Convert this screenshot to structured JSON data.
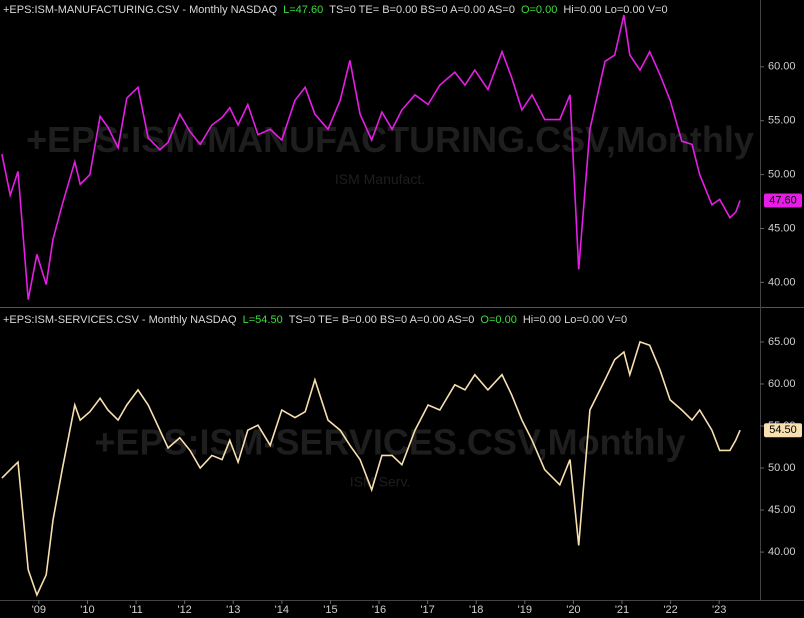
{
  "chart_data": [
    {
      "type": "line",
      "header": [
        {
          "text": "+EPS:ISM-MANUFACTURING.CSV - Monthly  NASDAQ",
          "color": "#d8d8d8"
        },
        {
          "text": "L=47.60",
          "color": "#3ddc3d"
        },
        {
          "text": "TS=0  TE=  B=0.00  BS=0  A=0.00  AS=0",
          "color": "#d8d8d8"
        },
        {
          "text": "O=0.00",
          "color": "#3ddc3d"
        },
        {
          "text": "Hi=0.00  Lo=0.00  V=0",
          "color": "#d8d8d8"
        }
      ],
      "watermark": "+EPS:ISM-MANUFACTURING.CSV,Monthly",
      "subtitle": "ISM Manufact.",
      "last_value_label": "47.60",
      "color": "#e51ee5",
      "x": [
        2008.24,
        2008.41,
        2008.57,
        2008.78,
        2008.96,
        2009.15,
        2009.29,
        2009.48,
        2009.74,
        2009.85,
        2010.05,
        2010.26,
        2010.42,
        2010.63,
        2010.81,
        2011.04,
        2011.25,
        2011.49,
        2011.66,
        2011.9,
        2012.11,
        2012.32,
        2012.56,
        2012.77,
        2012.93,
        2013.1,
        2013.3,
        2013.51,
        2013.76,
        2014.0,
        2014.27,
        2014.48,
        2014.68,
        2014.95,
        2015.2,
        2015.4,
        2015.61,
        2015.85,
        2016.06,
        2016.27,
        2016.47,
        2016.74,
        2017.01,
        2017.25,
        2017.56,
        2017.77,
        2017.97,
        2018.24,
        2018.53,
        2018.73,
        2018.94,
        2019.15,
        2019.41,
        2019.72,
        2019.93,
        2020.11,
        2020.34,
        2020.65,
        2020.85,
        2021.04,
        2021.16,
        2021.37,
        2021.57,
        2021.78,
        2021.99,
        2022.23,
        2022.44,
        2022.6,
        2022.85,
        2023.01,
        2023.22,
        2023.34,
        2023.43
      ],
      "values": [
        51.9,
        48.1,
        50.3,
        38.4,
        42.6,
        39.8,
        44,
        47.2,
        51.2,
        49.1,
        50,
        55.4,
        54.4,
        52.5,
        57.1,
        58.1,
        53.4,
        52.3,
        53,
        55.6,
        54,
        52.8,
        54.6,
        55.3,
        56.2,
        54.6,
        56.5,
        53.7,
        54.2,
        53.2,
        56.9,
        58.1,
        55.6,
        54.2,
        56.9,
        60.6,
        55.6,
        53.2,
        55.8,
        54.2,
        56,
        57.4,
        56.5,
        58.3,
        59.5,
        58.3,
        59.7,
        57.9,
        61.4,
        59,
        56,
        57.4,
        55.1,
        55.1,
        57.4,
        41.2,
        54.2,
        60.5,
        61.1,
        64.8,
        61.1,
        59.7,
        61.4,
        59.3,
        56.9,
        53.1,
        52.8,
        50,
        47.2,
        47.7,
        46,
        46.5,
        47.6
      ],
      "xlim": [
        2008.2,
        2023.84
      ],
      "ylim": [
        37.9,
        66.2
      ],
      "yticks": [
        {
          "value": 40,
          "label": "40.00"
        },
        {
          "value": 45,
          "label": "45.00"
        },
        {
          "value": 50,
          "label": "50.00"
        },
        {
          "value": 55,
          "label": "55.00"
        },
        {
          "value": 60,
          "label": "60.00"
        }
      ]
    },
    {
      "type": "line",
      "header": [
        {
          "text": "+EPS:ISM-SERVICES.CSV - Monthly  NASDAQ",
          "color": "#d8d8d8"
        },
        {
          "text": "L=54.50",
          "color": "#3ddc3d"
        },
        {
          "text": "TS=0  TE=  B=0.00  BS=0  A=0.00  AS=0",
          "color": "#d8d8d8"
        },
        {
          "text": "O=0.00",
          "color": "#3ddc3d"
        },
        {
          "text": "Hi=0.00  Lo=0.00  V=0",
          "color": "#d8d8d8"
        }
      ],
      "watermark": "+EPS:ISM-SERVICES.CSV,Monthly",
      "subtitle": "ISM Serv.",
      "last_value_label": "54.50",
      "color": "#f7dfb0",
      "x": [
        2008.24,
        2008.41,
        2008.57,
        2008.78,
        2008.96,
        2009.15,
        2009.29,
        2009.48,
        2009.74,
        2009.85,
        2010.05,
        2010.26,
        2010.42,
        2010.63,
        2010.81,
        2011.04,
        2011.25,
        2011.49,
        2011.66,
        2011.9,
        2012.11,
        2012.32,
        2012.56,
        2012.77,
        2012.93,
        2013.1,
        2013.3,
        2013.51,
        2013.76,
        2014.0,
        2014.27,
        2014.48,
        2014.68,
        2014.95,
        2015.2,
        2015.4,
        2015.61,
        2015.85,
        2016.06,
        2016.27,
        2016.47,
        2016.74,
        2017.01,
        2017.25,
        2017.56,
        2017.77,
        2017.97,
        2018.24,
        2018.53,
        2018.73,
        2018.94,
        2019.15,
        2019.41,
        2019.72,
        2019.93,
        2020.11,
        2020.34,
        2020.65,
        2020.85,
        2021.04,
        2021.16,
        2021.37,
        2021.57,
        2021.78,
        2021.99,
        2022.23,
        2022.44,
        2022.6,
        2022.85,
        2023.01,
        2023.22,
        2023.34,
        2023.43
      ],
      "values": [
        48.8,
        49.8,
        50.7,
        37.9,
        34.9,
        37.3,
        43.8,
        49.8,
        57.5,
        55.7,
        56.7,
        58.3,
        56.9,
        55.7,
        57.5,
        59.3,
        57.5,
        54.5,
        52.4,
        53.6,
        52.1,
        50,
        51.5,
        51,
        53.3,
        50.7,
        54.5,
        55.1,
        52.7,
        56.9,
        56,
        56.7,
        60.5,
        55.7,
        54.5,
        52.7,
        51,
        47.4,
        51.5,
        51.5,
        50.4,
        54.5,
        57.5,
        56.9,
        59.9,
        59.3,
        61.1,
        59.3,
        61.1,
        58.7,
        55.7,
        53.3,
        49.8,
        48,
        51,
        40.8,
        56.9,
        60.5,
        62.9,
        63.8,
        61.1,
        65,
        64.6,
        61.7,
        58.1,
        56.9,
        55.7,
        56.9,
        54.5,
        52.1,
        52.1,
        53.3,
        54.5
      ],
      "xlim": [
        2008.2,
        2023.84
      ],
      "ylim": [
        34.3,
        68.8
      ],
      "yticks": [
        {
          "value": 40,
          "label": "40.00"
        },
        {
          "value": 45,
          "label": "45.00"
        },
        {
          "value": 50,
          "label": "50.00"
        },
        {
          "value": 55,
          "label": "55.00"
        },
        {
          "value": 60,
          "label": "60.00"
        },
        {
          "value": 65,
          "label": "65.00"
        }
      ],
      "xticks": [
        {
          "value": 2009,
          "label": "'09"
        },
        {
          "value": 2010,
          "label": "'10"
        },
        {
          "value": 2011,
          "label": "'11"
        },
        {
          "value": 2012,
          "label": "'12"
        },
        {
          "value": 2013,
          "label": "'13"
        },
        {
          "value": 2014,
          "label": "'14"
        },
        {
          "value": 2015,
          "label": "'15"
        },
        {
          "value": 2016,
          "label": "'16"
        },
        {
          "value": 2017,
          "label": "'17"
        },
        {
          "value": 2018,
          "label": "'18"
        },
        {
          "value": 2019,
          "label": "'19"
        },
        {
          "value": 2020,
          "label": "'20"
        },
        {
          "value": 2021,
          "label": "'21"
        },
        {
          "value": 2022,
          "label": "'22"
        },
        {
          "value": 2023,
          "label": "'23"
        }
      ]
    }
  ]
}
